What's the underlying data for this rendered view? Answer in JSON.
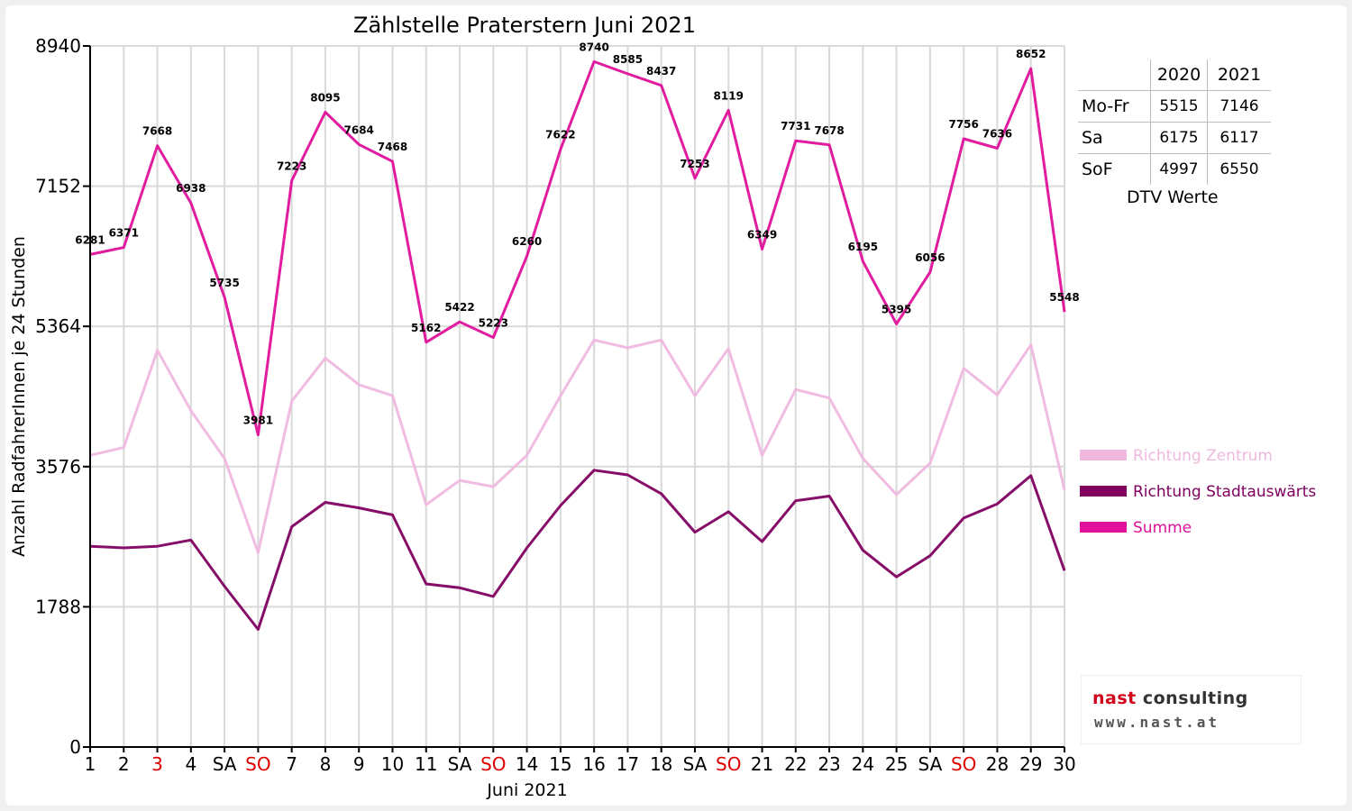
{
  "chart_data": {
    "type": "line",
    "title": "Zählstelle Praterstern Juni 2021",
    "xlabel": "Juni 2021",
    "ylabel": "Anzahl RadfahrerInnen je 24 Stunden",
    "ylim": [
      0,
      8940
    ],
    "yticks": [
      0,
      1788,
      3576,
      5364,
      7152,
      8940
    ],
    "categories": [
      "1",
      "2",
      "3",
      "4",
      "SA",
      "SO",
      "7",
      "8",
      "9",
      "10",
      "11",
      "SA",
      "SO",
      "14",
      "15",
      "16",
      "17",
      "18",
      "SA",
      "SO",
      "21",
      "22",
      "23",
      "24",
      "25",
      "SA",
      "SO",
      "28",
      "29",
      "30"
    ],
    "red_categories": [
      "3",
      "SO"
    ],
    "grid": true,
    "legend_position": "right",
    "series": [
      {
        "name": "Richtung Zentrum",
        "color": "#f0b8df",
        "values": [
          3720,
          3820,
          5060,
          4290,
          3680,
          2480,
          4410,
          4960,
          4620,
          4480,
          3090,
          3400,
          3320,
          3720,
          4480,
          5190,
          5090,
          5190,
          4480,
          5080,
          3720,
          4560,
          4450,
          3680,
          3220,
          3620,
          4830,
          4490,
          5130,
          3280
        ]
      },
      {
        "name": "Richtung Stadtauswärts",
        "color": "#800060",
        "values": [
          2560,
          2540,
          2560,
          2640,
          2050,
          1500,
          2810,
          3120,
          3050,
          2960,
          2080,
          2030,
          1920,
          2540,
          3080,
          3530,
          3470,
          3230,
          2740,
          3000,
          2620,
          3140,
          3200,
          2510,
          2170,
          2440,
          2920,
          3100,
          3460,
          2250
        ]
      },
      {
        "name": "Summe",
        "color": "#e0109a",
        "values": [
          6281,
          6371,
          7668,
          6938,
          5735,
          3981,
          7223,
          8095,
          7684,
          7468,
          5162,
          5422,
          5223,
          6260,
          7622,
          8740,
          8585,
          8437,
          7253,
          8119,
          6349,
          7731,
          7678,
          6195,
          5395,
          6056,
          7756,
          7636,
          8652,
          5548
        ],
        "data_labels": [
          "6281",
          "6371",
          "7668",
          "6938",
          "5735",
          "3981",
          "7223",
          "8095",
          "7684",
          "7468",
          "5162",
          "5422",
          "5223",
          "6260",
          "7622",
          "8740",
          "8585",
          "8437",
          "7253",
          "8119",
          "6349",
          "7731",
          "7678",
          "6195",
          "5395",
          "6056",
          "7756",
          "7636",
          "8652",
          "5548"
        ]
      }
    ]
  },
  "dtv_table": {
    "headers": [
      "",
      "2020",
      "2021"
    ],
    "rows": [
      {
        "label": "Mo-Fr",
        "v2020": "5515",
        "v2021": "7146"
      },
      {
        "label": "Sa",
        "v2020": "6175",
        "v2021": "6117"
      },
      {
        "label": "SoF",
        "v2020": "4997",
        "v2021": "6550"
      }
    ],
    "caption": "DTV Werte"
  },
  "logo": {
    "name_part1": "nast",
    "name_part2": " consulting",
    "url": "www.nast.at"
  }
}
